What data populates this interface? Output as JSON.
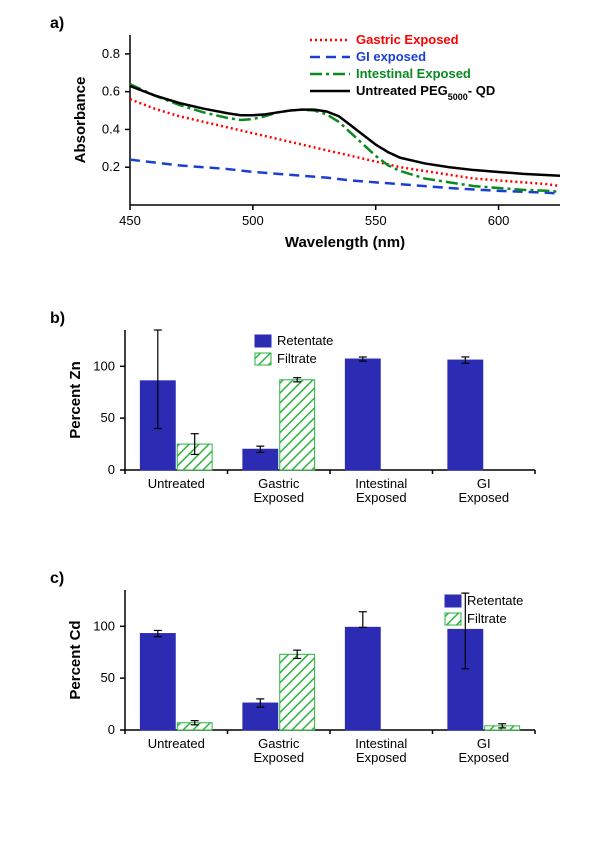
{
  "panelA": {
    "label": "a)",
    "type": "line",
    "xlabel": "Wavelength (nm)",
    "ylabel": "Absorbance",
    "xlim": [
      450,
      625
    ],
    "ylim": [
      0.0,
      0.9
    ],
    "xticks": [
      450,
      500,
      550,
      600
    ],
    "yticks": [
      0.2,
      0.4,
      0.6,
      0.8
    ],
    "title_fontsize": 15,
    "tick_fontsize": 13,
    "series": [
      {
        "name": "Gastric Exposed",
        "color": "#ff0000",
        "dash": "2,3",
        "width": 2.5,
        "data": [
          [
            450,
            0.56
          ],
          [
            460,
            0.51
          ],
          [
            470,
            0.47
          ],
          [
            480,
            0.44
          ],
          [
            490,
            0.41
          ],
          [
            500,
            0.38
          ],
          [
            510,
            0.35
          ],
          [
            520,
            0.32
          ],
          [
            530,
            0.29
          ],
          [
            540,
            0.26
          ],
          [
            550,
            0.23
          ],
          [
            560,
            0.2
          ],
          [
            570,
            0.18
          ],
          [
            580,
            0.16
          ],
          [
            590,
            0.14
          ],
          [
            600,
            0.13
          ],
          [
            610,
            0.12
          ],
          [
            620,
            0.11
          ],
          [
            625,
            0.1
          ]
        ]
      },
      {
        "name": "GI exposed",
        "color": "#1a3fd6",
        "dash": "10,6",
        "width": 2.5,
        "data": [
          [
            450,
            0.24
          ],
          [
            460,
            0.225
          ],
          [
            470,
            0.21
          ],
          [
            480,
            0.2
          ],
          [
            490,
            0.19
          ],
          [
            500,
            0.175
          ],
          [
            510,
            0.165
          ],
          [
            520,
            0.155
          ],
          [
            530,
            0.145
          ],
          [
            540,
            0.13
          ],
          [
            550,
            0.12
          ],
          [
            560,
            0.11
          ],
          [
            570,
            0.1
          ],
          [
            580,
            0.09
          ],
          [
            590,
            0.082
          ],
          [
            600,
            0.075
          ],
          [
            610,
            0.07
          ],
          [
            620,
            0.065
          ],
          [
            625,
            0.06
          ]
        ]
      },
      {
        "name": "Intestinal Exposed",
        "color": "#0a8a1f",
        "dash": "12,4,3,4",
        "width": 2.5,
        "data": [
          [
            450,
            0.64
          ],
          [
            460,
            0.58
          ],
          [
            470,
            0.53
          ],
          [
            480,
            0.49
          ],
          [
            490,
            0.46
          ],
          [
            495,
            0.45
          ],
          [
            500,
            0.455
          ],
          [
            505,
            0.47
          ],
          [
            510,
            0.49
          ],
          [
            515,
            0.5
          ],
          [
            520,
            0.505
          ],
          [
            525,
            0.5
          ],
          [
            530,
            0.48
          ],
          [
            535,
            0.44
          ],
          [
            540,
            0.38
          ],
          [
            545,
            0.32
          ],
          [
            550,
            0.26
          ],
          [
            555,
            0.21
          ],
          [
            560,
            0.18
          ],
          [
            570,
            0.14
          ],
          [
            580,
            0.12
          ],
          [
            590,
            0.1
          ],
          [
            600,
            0.09
          ],
          [
            610,
            0.08
          ],
          [
            620,
            0.075
          ],
          [
            625,
            0.07
          ]
        ]
      },
      {
        "name": "Untreated PEG5000- QD",
        "name_rich": {
          "pre": "Untreated PEG",
          "sub": "5000",
          "post": "- QD"
        },
        "color": "#000000",
        "dash": "none",
        "width": 2.5,
        "data": [
          [
            450,
            0.63
          ],
          [
            460,
            0.58
          ],
          [
            470,
            0.54
          ],
          [
            480,
            0.51
          ],
          [
            490,
            0.485
          ],
          [
            495,
            0.475
          ],
          [
            500,
            0.475
          ],
          [
            505,
            0.48
          ],
          [
            510,
            0.49
          ],
          [
            515,
            0.5
          ],
          [
            520,
            0.505
          ],
          [
            525,
            0.505
          ],
          [
            530,
            0.495
          ],
          [
            535,
            0.47
          ],
          [
            540,
            0.42
          ],
          [
            545,
            0.37
          ],
          [
            550,
            0.32
          ],
          [
            555,
            0.28
          ],
          [
            560,
            0.25
          ],
          [
            570,
            0.22
          ],
          [
            580,
            0.2
          ],
          [
            590,
            0.185
          ],
          [
            600,
            0.175
          ],
          [
            610,
            0.165
          ],
          [
            620,
            0.158
          ],
          [
            625,
            0.155
          ]
        ]
      }
    ]
  },
  "panelB": {
    "label": "b)",
    "type": "bar",
    "ylabel": "Percent Zn",
    "ylim": [
      0,
      135
    ],
    "yticks": [
      0,
      50,
      100
    ],
    "categories": [
      "Untreated",
      "Gastric\nExposed",
      "Intestinal\nExposed",
      "GI\nExposed"
    ],
    "bar_width": 0.35,
    "series": [
      {
        "name": "Retentate",
        "color": "#2b2cb3",
        "pattern": "solid",
        "values": [
          86,
          20,
          107,
          106
        ],
        "err": [
          [
            46,
            49
          ],
          [
            3,
            3
          ],
          [
            2,
            2
          ],
          [
            3,
            3
          ]
        ]
      },
      {
        "name": "Filtrate",
        "color": "#2bb33f",
        "pattern": "hatch",
        "values": [
          25,
          87,
          0,
          0
        ],
        "err": [
          [
            10,
            10
          ],
          [
            2,
            2
          ],
          [
            0,
            0
          ],
          [
            0,
            0
          ]
        ]
      }
    ]
  },
  "panelC": {
    "label": "c)",
    "type": "bar",
    "ylabel": "Percent Cd",
    "ylim": [
      0,
      135
    ],
    "yticks": [
      0,
      50,
      100
    ],
    "categories": [
      "Untreated",
      "Gastric\nExposed",
      "Intestinal\nExposed",
      "GI\nExposed"
    ],
    "bar_width": 0.35,
    "series": [
      {
        "name": "Retentate",
        "color": "#2b2cb3",
        "pattern": "solid",
        "values": [
          93,
          26,
          99,
          97
        ],
        "err": [
          [
            3,
            3
          ],
          [
            4,
            4
          ],
          [
            0,
            15
          ],
          [
            38,
            35
          ]
        ]
      },
      {
        "name": "Filtrate",
        "color": "#2bb33f",
        "pattern": "hatch",
        "values": [
          7,
          73,
          0,
          4
        ],
        "err": [
          [
            2,
            2
          ],
          [
            4,
            4
          ],
          [
            0,
            0
          ],
          [
            2,
            2
          ]
        ]
      }
    ]
  },
  "colors": {
    "retentate": "#2b2cb3",
    "filtrate_line": "#2bb33f",
    "axis": "#000000",
    "background": "#ffffff"
  }
}
